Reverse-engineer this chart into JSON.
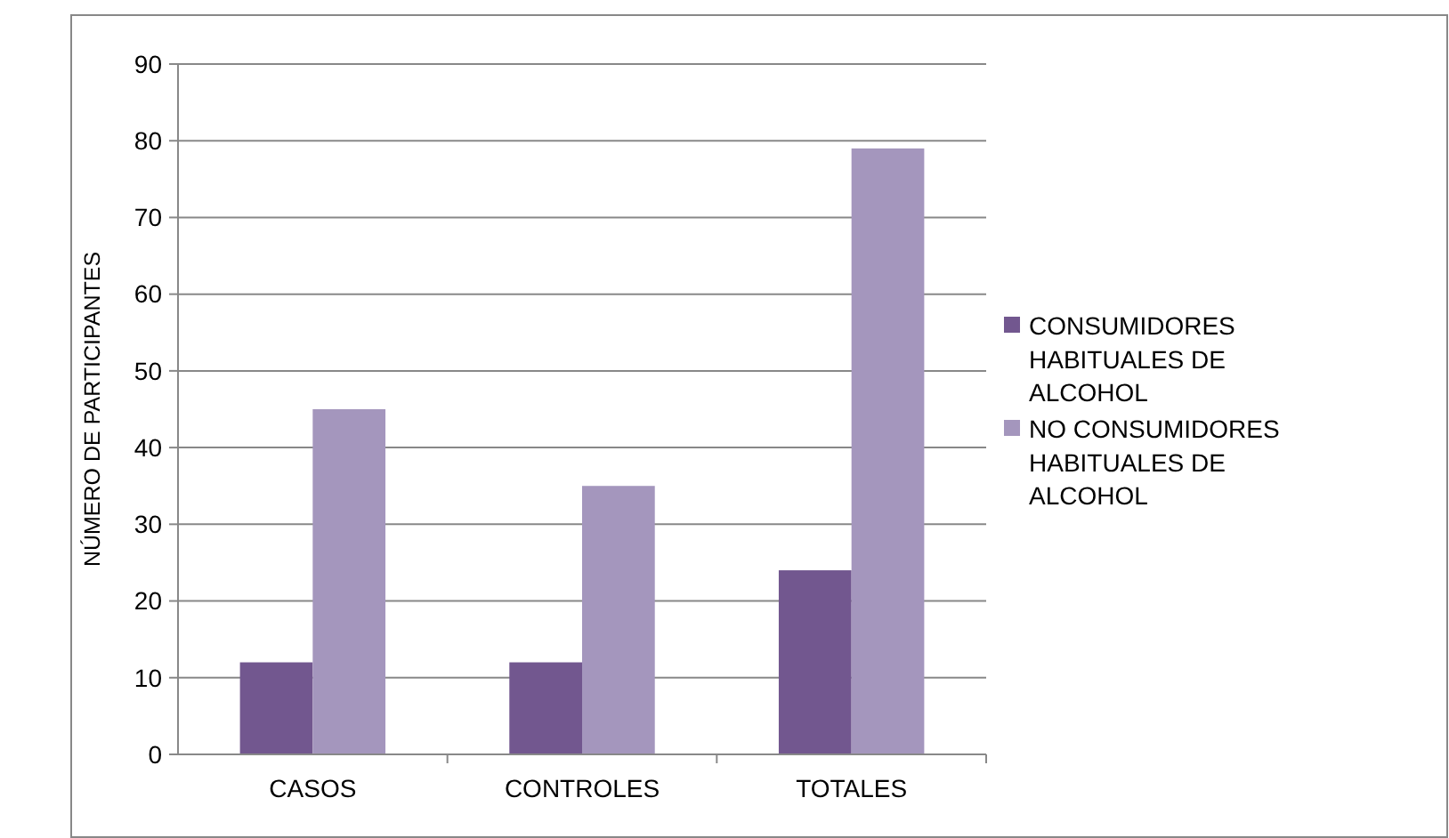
{
  "chart_data": {
    "type": "bar",
    "ylabel": "NÚMERO DE PARTICIPANTES",
    "categories": [
      "CASOS",
      "CONTROLES",
      "TOTALES"
    ],
    "series": [
      {
        "name": "CONSUMIDORES HABITUALES DE ALCOHOL",
        "color": "#72578f",
        "values": [
          12,
          12,
          24
        ]
      },
      {
        "name": "NO CONSUMIDORES HABITUALES DE ALCOHOL",
        "color": "#a496bd",
        "values": [
          45,
          35,
          79
        ]
      }
    ],
    "ylim": [
      0,
      90
    ],
    "yticks": [
      0,
      10,
      20,
      30,
      40,
      50,
      60,
      70,
      80,
      90
    ],
    "grid": "y",
    "legend": "right"
  }
}
